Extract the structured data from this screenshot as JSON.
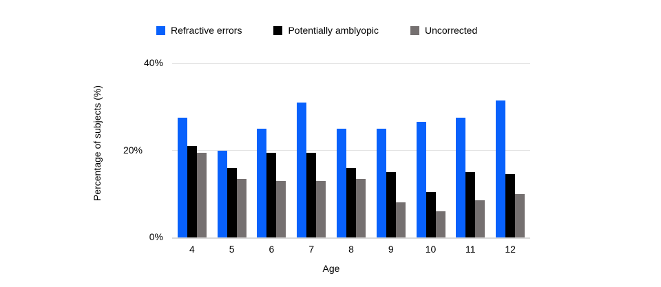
{
  "chart_data": {
    "type": "bar",
    "title": "",
    "xlabel": "Age",
    "ylabel": "Percentage of subjects (%)",
    "categories": [
      "4",
      "5",
      "6",
      "7",
      "8",
      "9",
      "10",
      "11",
      "12"
    ],
    "series": [
      {
        "name": "Refractive errors",
        "color": "#0861fc",
        "values": [
          27.5,
          20,
          25,
          31,
          25,
          25,
          26.5,
          27.5,
          31.5
        ]
      },
      {
        "name": "Potentially amblyopic",
        "color": "#000000",
        "values": [
          21,
          16,
          19.5,
          19.5,
          16,
          15,
          10.5,
          15,
          14.5
        ]
      },
      {
        "name": "Uncorrected",
        "color": "#757070",
        "values": [
          19.5,
          13.5,
          13,
          13,
          13.5,
          8,
          6,
          8.5,
          10
        ]
      }
    ],
    "ylim": [
      0,
      40
    ],
    "yticks": [
      {
        "label": "0%",
        "value": 0
      },
      {
        "label": "20%",
        "value": 20
      },
      {
        "label": "40%",
        "value": 40
      }
    ],
    "grid": true,
    "legend_position": "top",
    "colors": {
      "background": "#ffffff",
      "gridline": "#e2e2e2",
      "axisline": "#d9d9d9",
      "text": "#000000"
    }
  }
}
